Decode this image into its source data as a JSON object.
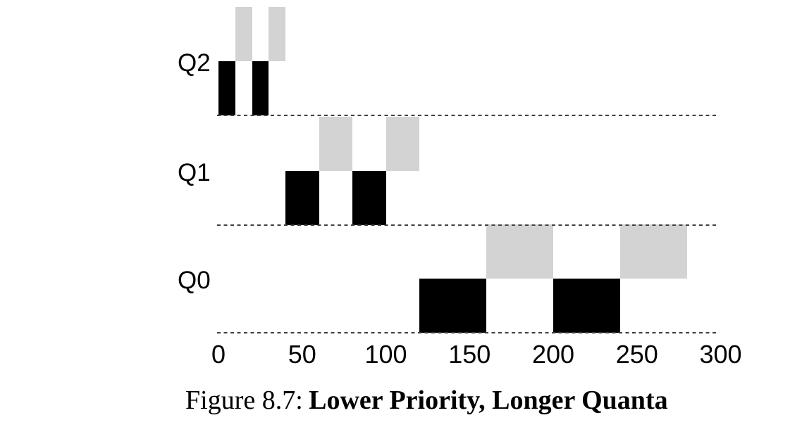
{
  "figure": {
    "caption": {
      "label": "Figure 8.7:",
      "title": "Lower Priority, Longer Quanta"
    }
  },
  "chart_data": {
    "type": "bar",
    "subtype": "mlfq-scheduling-timeline",
    "title": "Figure 8.7: Lower Priority, Longer Quanta",
    "xlabel": "",
    "ylabel": "",
    "xlim": [
      0,
      300
    ],
    "x_ticks": [
      0,
      50,
      100,
      150,
      200,
      250,
      300
    ],
    "grid": "dashed horizontal baseline under each queue row, no vertical gridlines",
    "legend": "none",
    "queues": [
      {
        "label": "Q2",
        "segments": [
          {
            "shade": "black",
            "band": "lower",
            "start": 0,
            "end": 10
          },
          {
            "shade": "gray",
            "band": "upper",
            "start": 10,
            "end": 20
          },
          {
            "shade": "black",
            "band": "lower",
            "start": 20,
            "end": 30
          },
          {
            "shade": "gray",
            "band": "upper",
            "start": 30,
            "end": 40
          }
        ]
      },
      {
        "label": "Q1",
        "segments": [
          {
            "shade": "black",
            "band": "lower",
            "start": 40,
            "end": 60
          },
          {
            "shade": "gray",
            "band": "upper",
            "start": 60,
            "end": 80
          },
          {
            "shade": "black",
            "band": "lower",
            "start": 80,
            "end": 100
          },
          {
            "shade": "gray",
            "band": "upper",
            "start": 100,
            "end": 120
          }
        ]
      },
      {
        "label": "Q0",
        "segments": [
          {
            "shade": "black",
            "band": "lower",
            "start": 120,
            "end": 160
          },
          {
            "shade": "gray",
            "band": "upper",
            "start": 160,
            "end": 200
          },
          {
            "shade": "black",
            "band": "lower",
            "start": 200,
            "end": 240
          },
          {
            "shade": "gray",
            "band": "upper",
            "start": 240,
            "end": 280
          }
        ]
      }
    ],
    "colors": {
      "black_segment": "#000000",
      "gray_segment": "#d3d3d3",
      "dashed_line": "#404040",
      "text": "#000000",
      "background": "#ffffff"
    }
  }
}
